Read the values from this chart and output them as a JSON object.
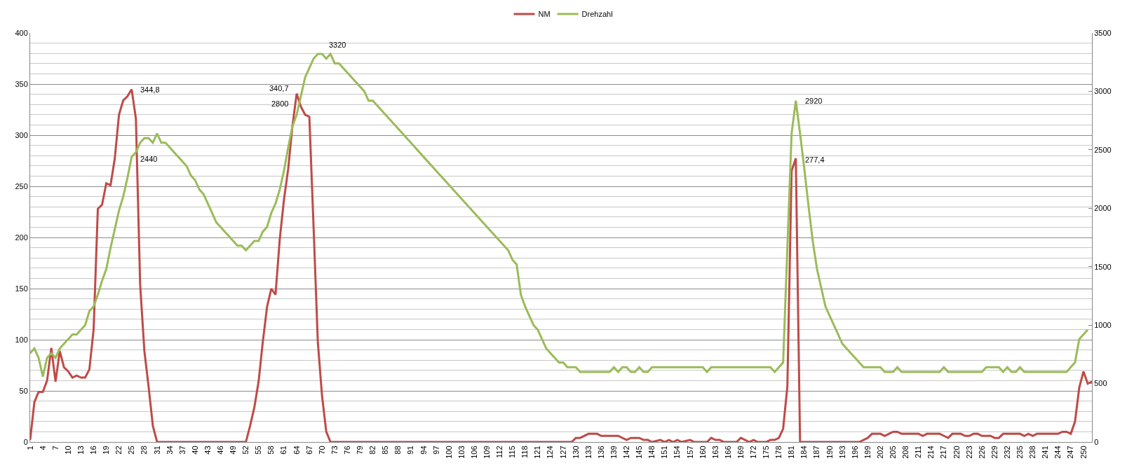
{
  "chart_data": {
    "type": "line",
    "legend": "top",
    "grid": "y",
    "xlim": [
      1,
      252
    ],
    "xticks": [
      1,
      4,
      7,
      10,
      13,
      16,
      19,
      22,
      25,
      28,
      31,
      34,
      37,
      40,
      43,
      46,
      49,
      52,
      55,
      58,
      61,
      64,
      67,
      70,
      73,
      76,
      79,
      82,
      85,
      88,
      91,
      94,
      97,
      100,
      103,
      106,
      109,
      112,
      115,
      118,
      121,
      124,
      127,
      130,
      133,
      136,
      139,
      142,
      145,
      148,
      151,
      154,
      157,
      160,
      163,
      166,
      169,
      172,
      175,
      178,
      181,
      184,
      187,
      190,
      193,
      196,
      199,
      202,
      205,
      208,
      211,
      214,
      217,
      220,
      223,
      226,
      229,
      232,
      235,
      238,
      241,
      244,
      247,
      250
    ],
    "ylim": [
      0,
      400
    ],
    "yticks": [
      0,
      {
        "value": 10,
        "label": null
      },
      {
        "value": 20,
        "label": null
      },
      {
        "value": 30,
        "label": null
      },
      {
        "value": 40,
        "label": null
      },
      50,
      {
        "value": 60,
        "label": null
      },
      {
        "value": 70,
        "label": null
      },
      {
        "value": 80,
        "label": null
      },
      {
        "value": 90,
        "label": null
      },
      100,
      {
        "value": 110,
        "label": null
      },
      {
        "value": 120,
        "label": null
      },
      {
        "value": 130,
        "label": null
      },
      {
        "value": 140,
        "label": null
      },
      150,
      {
        "value": 160,
        "label": null
      },
      {
        "value": 170,
        "label": null
      },
      {
        "value": 180,
        "label": null
      },
      {
        "value": 190,
        "label": null
      },
      200,
      {
        "value": 210,
        "label": null
      },
      {
        "value": 220,
        "label": null
      },
      {
        "value": 230,
        "label": null
      },
      {
        "value": 240,
        "label": null
      },
      250,
      {
        "value": 260,
        "label": null
      },
      {
        "value": 270,
        "label": null
      },
      {
        "value": 280,
        "label": null
      },
      {
        "value": 290,
        "label": null
      },
      300,
      {
        "value": 310,
        "label": null
      },
      {
        "value": 320,
        "label": null
      },
      {
        "value": 330,
        "label": null
      },
      {
        "value": 340,
        "label": null
      },
      350,
      {
        "value": 360,
        "label": null
      },
      {
        "value": 370,
        "label": null
      },
      {
        "value": 380,
        "label": null
      },
      {
        "value": 390,
        "label": null
      },
      400
    ],
    "y2lim": [
      0,
      3500
    ],
    "y2ticks": [
      0,
      500,
      1000,
      1500,
      2000,
      2500,
      3000,
      3500
    ],
    "series": [
      {
        "name": "NM",
        "color": "#be4b48",
        "x": [
          1,
          2,
          3,
          4,
          5,
          6,
          7,
          8,
          9,
          10,
          11,
          12,
          13,
          14,
          15,
          16,
          17,
          18,
          19,
          20,
          21,
          22,
          23,
          24,
          25,
          26,
          27,
          28,
          29,
          30,
          31,
          52,
          53,
          54,
          55,
          56,
          57,
          58,
          59,
          60,
          61,
          62,
          63,
          64,
          65,
          66,
          67,
          68,
          69,
          70,
          71,
          72,
          129,
          130,
          131,
          133,
          135,
          136,
          140,
          142,
          143,
          145,
          146,
          147,
          148,
          150,
          151,
          152,
          153,
          154,
          155,
          157,
          158,
          161,
          162,
          163,
          164,
          165,
          168,
          169,
          170,
          171,
          172,
          173,
          175,
          176,
          177,
          178,
          179,
          180,
          181,
          182,
          183,
          197,
          198,
          199,
          200,
          202,
          203,
          204,
          205,
          206,
          207,
          211,
          212,
          213,
          216,
          217,
          218,
          219,
          221,
          222,
          223,
          224,
          225,
          226,
          228,
          229,
          230,
          231,
          235,
          236,
          237,
          238,
          239,
          244,
          245,
          246,
          247,
          248,
          249,
          250,
          251,
          252
        ],
        "values": [
          2,
          39,
          49,
          49,
          60,
          92,
          59,
          89,
          73,
          69,
          63,
          65,
          63,
          63,
          71,
          110,
          228,
          232,
          253,
          251,
          277,
          320,
          334,
          338,
          344.8,
          316,
          154,
          89,
          54,
          16,
          0,
          0,
          16,
          34,
          59,
          98,
          132,
          150,
          144,
          198,
          237,
          267,
          309,
          340.7,
          328,
          320,
          318,
          210,
          98,
          45,
          10,
          0,
          0,
          4,
          4,
          8,
          8,
          6,
          6,
          2,
          4,
          4,
          2,
          2,
          0,
          2,
          0,
          2,
          0,
          2,
          0,
          2,
          0,
          0,
          4,
          2,
          2,
          0,
          0,
          4,
          2,
          0,
          2,
          0,
          0,
          2,
          2,
          4,
          13,
          54,
          265,
          277.4,
          0,
          0,
          2,
          4,
          8,
          8,
          6,
          8,
          10,
          10,
          8,
          8,
          6,
          8,
          8,
          6,
          4,
          8,
          8,
          6,
          6,
          8,
          8,
          6,
          6,
          4,
          4,
          8,
          8,
          6,
          8,
          6,
          8,
          8,
          10,
          10,
          8,
          20,
          53,
          69,
          57,
          59
        ],
        "value_labels": [
          null,
          null,
          null,
          null,
          null,
          null,
          null,
          null,
          null,
          null,
          null,
          null,
          null,
          null,
          null,
          null,
          null,
          null,
          null,
          null,
          null,
          null,
          null,
          null,
          "344,8",
          null,
          null,
          null,
          null,
          null,
          null,
          null,
          null,
          null,
          null,
          null,
          null,
          null,
          null,
          null,
          null,
          null,
          null,
          "340,7",
          null,
          null,
          null,
          null,
          null,
          null,
          null,
          null,
          null,
          null,
          null,
          null,
          null,
          null,
          null,
          null,
          null,
          null,
          null,
          null,
          null,
          null,
          null,
          null,
          null,
          null,
          null,
          null,
          null,
          null,
          null,
          null,
          null,
          null,
          null,
          null,
          null,
          null,
          null,
          null,
          null,
          null,
          null,
          null,
          null,
          null,
          null,
          "277,4",
          null,
          null,
          null,
          null,
          null,
          null,
          null,
          null,
          null,
          null,
          null,
          null,
          null,
          null,
          null,
          null,
          null,
          null,
          null,
          null,
          null,
          null,
          null,
          null,
          null,
          null,
          null,
          null,
          null,
          null,
          null,
          null,
          null,
          null,
          null,
          null,
          null,
          null,
          null,
          null,
          null,
          null
        ]
      },
      {
        "name": "Drehzahl",
        "color": "#9bbb59",
        "axis": "y2",
        "x": [
          1,
          2,
          3,
          4,
          5,
          6,
          7,
          8,
          9,
          10,
          11,
          12,
          13,
          14,
          15,
          16,
          17,
          18,
          19,
          20,
          21,
          22,
          23,
          24,
          25,
          26,
          27,
          28,
          29,
          30,
          31,
          32,
          33,
          34,
          35,
          36,
          37,
          38,
          39,
          40,
          41,
          42,
          43,
          44,
          45,
          46,
          47,
          48,
          49,
          50,
          51,
          52,
          53,
          54,
          55,
          56,
          57,
          58,
          59,
          60,
          61,
          62,
          63,
          64,
          65,
          66,
          67,
          68,
          69,
          70,
          71,
          72,
          73,
          74,
          80,
          81,
          82,
          85,
          88,
          91,
          94,
          97,
          100,
          103,
          106,
          109,
          112,
          114,
          115,
          116,
          117,
          118,
          119,
          120,
          121,
          122,
          123,
          124,
          125,
          126,
          127,
          128,
          130,
          131,
          138,
          139,
          140,
          141,
          142,
          143,
          144,
          145,
          146,
          147,
          148,
          160,
          161,
          162,
          176,
          177,
          179,
          181,
          182,
          183,
          184,
          185,
          186,
          187,
          188,
          189,
          190,
          191,
          192,
          193,
          194,
          195,
          196,
          197,
          198,
          202,
          203,
          205,
          206,
          207,
          216,
          217,
          218,
          226,
          227,
          230,
          231,
          232,
          233,
          234,
          235,
          236,
          246,
          248,
          249,
          251
        ],
        "values": [
          760,
          800,
          720,
          560,
          720,
          760,
          720,
          800,
          840,
          880,
          920,
          920,
          960,
          1000,
          1120,
          1160,
          1260,
          1380,
          1480,
          1660,
          1820,
          1980,
          2100,
          2260,
          2440,
          2480,
          2560,
          2600,
          2600,
          2560,
          2640,
          2560,
          2560,
          2520,
          2480,
          2440,
          2400,
          2360,
          2280,
          2240,
          2160,
          2120,
          2040,
          1960,
          1880,
          1840,
          1800,
          1760,
          1720,
          1680,
          1680,
          1640,
          1680,
          1720,
          1720,
          1800,
          1840,
          1960,
          2040,
          2160,
          2320,
          2520,
          2700,
          2800,
          2960,
          3120,
          3200,
          3280,
          3320,
          3320,
          3280,
          3320,
          3240,
          3240,
          3000,
          2920,
          2920,
          2800,
          2680,
          2560,
          2440,
          2320,
          2200,
          2080,
          1960,
          1840,
          1720,
          1640,
          1560,
          1520,
          1260,
          1160,
          1080,
          1000,
          960,
          880,
          800,
          760,
          720,
          680,
          680,
          640,
          640,
          600,
          600,
          640,
          600,
          640,
          640,
          600,
          600,
          640,
          600,
          600,
          640,
          640,
          600,
          640,
          640,
          600,
          680,
          2640,
          2920,
          2640,
          2340,
          2020,
          1720,
          1480,
          1320,
          1160,
          1080,
          1000,
          920,
          840,
          800,
          760,
          720,
          680,
          640,
          640,
          600,
          600,
          640,
          600,
          600,
          640,
          600,
          600,
          640,
          640,
          600,
          640,
          600,
          600,
          640,
          600,
          600,
          680,
          880,
          960
        ],
        "value_labels": [
          null,
          null,
          null,
          null,
          null,
          null,
          null,
          null,
          null,
          null,
          null,
          null,
          null,
          null,
          null,
          null,
          null,
          null,
          null,
          null,
          null,
          null,
          null,
          null,
          "2440",
          null,
          null,
          null,
          null,
          null,
          null,
          null,
          null,
          null,
          null,
          null,
          null,
          null,
          null,
          null,
          null,
          null,
          null,
          null,
          null,
          null,
          null,
          null,
          null,
          null,
          null,
          null,
          null,
          null,
          null,
          null,
          null,
          null,
          null,
          null,
          null,
          null,
          null,
          "2800",
          null,
          null,
          null,
          null,
          null,
          null,
          null,
          "3320",
          null,
          null,
          null,
          null,
          null,
          null,
          null,
          null,
          null,
          null,
          null,
          null,
          null,
          null,
          null,
          null,
          null,
          null,
          null,
          null,
          null,
          null,
          null,
          null,
          null,
          null,
          null,
          null,
          null,
          null,
          null,
          null,
          null,
          null,
          null,
          null,
          null,
          null,
          null,
          null,
          null,
          null,
          null,
          null,
          null,
          null,
          null,
          null,
          null,
          null,
          "2920",
          null,
          null,
          null,
          null,
          null,
          null,
          null,
          null,
          null,
          null,
          null,
          null,
          null,
          null,
          null,
          null,
          null,
          null,
          null,
          null,
          null,
          null,
          null,
          null,
          null,
          null,
          null,
          null,
          null,
          null,
          null,
          null,
          null,
          null,
          null,
          null,
          null
        ]
      }
    ]
  }
}
